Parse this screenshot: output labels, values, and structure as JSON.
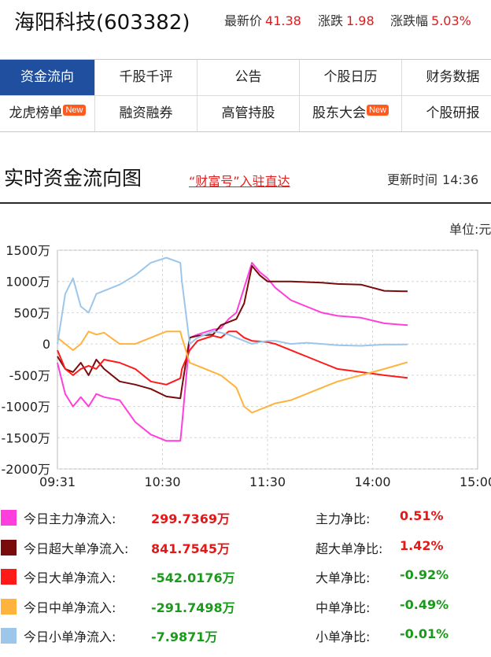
{
  "header": {
    "stock_name": "海阳科技(603382)",
    "latest_label": "最新价",
    "latest_value": "41.38",
    "change_label": "涨跌",
    "change_value": "1.98",
    "pct_label": "涨跌幅",
    "pct_value": "5.03%"
  },
  "nav": {
    "row1": [
      "资金流向",
      "千股千评",
      "公告",
      "个股日历",
      "财务数据"
    ],
    "row2": [
      "龙虎榜单",
      "融资融券",
      "高管持股",
      "股东大会",
      "个股研报"
    ],
    "badge": "New"
  },
  "section": {
    "title": "实时资金流向图",
    "promo": "“财富号”入驻直达",
    "update_label": "更新时间",
    "update_time": "14:36"
  },
  "chart_data": {
    "type": "line",
    "unit": "单位:元",
    "y_tick_labels": [
      "1500万",
      "1000万",
      "500万",
      "0",
      "-500万",
      "-1000万",
      "-1500万",
      "-2000万"
    ],
    "y_ticks": [
      1500,
      1000,
      500,
      0,
      -500,
      -1000,
      -1500,
      -2000
    ],
    "ylim": [
      -2000,
      1500
    ],
    "x_tick_labels": [
      "09:31",
      "10:30",
      "11:30",
      "14:00",
      "15:00"
    ],
    "grid": true,
    "series": [
      {
        "name": "今日主力净流入",
        "color": "#ff3fdc",
        "x": [
          0,
          5,
          10,
          15,
          20,
          25,
          30,
          40,
          50,
          60,
          70,
          79,
          80,
          85,
          90,
          100,
          105,
          110,
          115,
          120,
          125,
          130,
          135,
          140,
          150,
          160,
          170,
          180,
          195,
          210,
          225
        ],
        "values": [
          -300,
          -800,
          -1000,
          -850,
          -1000,
          -800,
          -850,
          -900,
          -1250,
          -1450,
          -1550,
          -1550,
          -1300,
          100,
          150,
          230,
          250,
          400,
          500,
          900,
          1300,
          1150,
          1050,
          900,
          700,
          600,
          500,
          450,
          420,
          330,
          300
        ]
      },
      {
        "name": "今日超大单净流入",
        "color": "#7a0b0b",
        "x": [
          0,
          5,
          10,
          15,
          20,
          25,
          30,
          40,
          50,
          60,
          70,
          79,
          80,
          85,
          90,
          100,
          105,
          110,
          115,
          120,
          125,
          130,
          135,
          140,
          150,
          160,
          170,
          180,
          195,
          210,
          225
        ],
        "values": [
          -200,
          -400,
          -450,
          -300,
          -500,
          -250,
          -400,
          -600,
          -650,
          -720,
          -840,
          -870,
          -700,
          100,
          130,
          150,
          300,
          350,
          400,
          650,
          1250,
          1100,
          1000,
          1000,
          1000,
          990,
          980,
          960,
          950,
          850,
          842
        ]
      },
      {
        "name": "今日大单净流入",
        "color": "#ff1a1a",
        "x": [
          0,
          5,
          10,
          15,
          20,
          25,
          30,
          40,
          50,
          60,
          70,
          79,
          80,
          85,
          90,
          100,
          105,
          110,
          115,
          120,
          125,
          130,
          135,
          140,
          150,
          160,
          170,
          180,
          195,
          210,
          225
        ],
        "values": [
          -100,
          -400,
          -500,
          -400,
          -350,
          -400,
          -250,
          -300,
          -400,
          -600,
          -650,
          -550,
          -400,
          -100,
          50,
          130,
          100,
          200,
          200,
          100,
          50,
          40,
          30,
          0,
          -100,
          -200,
          -300,
          -400,
          -450,
          -500,
          -542
        ]
      },
      {
        "name": "今日中单净流入",
        "color": "#ffb33c",
        "x": [
          0,
          5,
          10,
          15,
          20,
          25,
          30,
          40,
          50,
          60,
          70,
          79,
          80,
          85,
          90,
          100,
          105,
          110,
          115,
          120,
          125,
          130,
          135,
          140,
          150,
          160,
          170,
          180,
          195,
          210,
          225
        ],
        "values": [
          100,
          0,
          -100,
          0,
          200,
          150,
          180,
          0,
          0,
          100,
          200,
          200,
          100,
          -300,
          -350,
          -450,
          -500,
          -600,
          -700,
          -1000,
          -1100,
          -1050,
          -1000,
          -950,
          -900,
          -800,
          -700,
          -600,
          -500,
          -400,
          -292
        ]
      },
      {
        "name": "今日小单净流入",
        "color": "#9cc6ea",
        "x": [
          0,
          5,
          10,
          15,
          20,
          25,
          30,
          40,
          50,
          60,
          70,
          79,
          80,
          85,
          90,
          100,
          105,
          110,
          115,
          120,
          125,
          130,
          135,
          140,
          150,
          160,
          170,
          180,
          195,
          210,
          225
        ],
        "values": [
          0,
          800,
          1050,
          600,
          500,
          800,
          850,
          950,
          1100,
          1300,
          1380,
          1300,
          1000,
          0,
          100,
          200,
          180,
          150,
          100,
          50,
          0,
          30,
          50,
          50,
          0,
          20,
          0,
          -20,
          -30,
          -10,
          -8
        ]
      }
    ]
  },
  "legend": [
    {
      "label": "今日主力净流入:",
      "value": "299.7369万",
      "ratio_label": "主力净比:",
      "ratio": "0.51%",
      "color": "#ff3fdc",
      "sign": "pos"
    },
    {
      "label": "今日超大单净流入:",
      "value": "841.7545万",
      "ratio_label": "超大单净比:",
      "ratio": "1.42%",
      "color": "#7a0b0b",
      "sign": "pos"
    },
    {
      "label": "今日大单净流入:",
      "value": "-542.0176万",
      "ratio_label": "大单净比:",
      "ratio": "-0.92%",
      "color": "#ff1a1a",
      "sign": "neg"
    },
    {
      "label": "今日中单净流入:",
      "value": "-291.7498万",
      "ratio_label": "中单净比:",
      "ratio": "-0.49%",
      "color": "#ffb33c",
      "sign": "neg"
    },
    {
      "label": "今日小单净流入:",
      "value": "-7.9871万",
      "ratio_label": "小单净比:",
      "ratio": "-0.01%",
      "color": "#9cc6ea",
      "sign": "neg"
    }
  ]
}
